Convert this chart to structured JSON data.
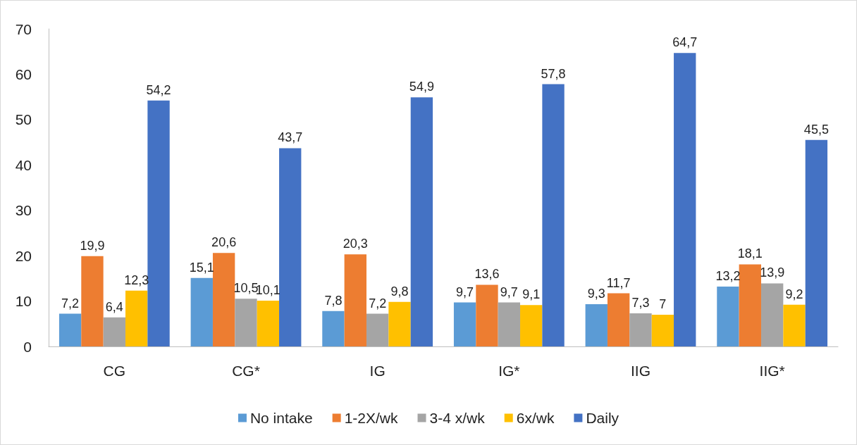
{
  "chart_data": {
    "type": "bar",
    "categories": [
      "CG",
      "CG*",
      "IG",
      "IG*",
      "IIG",
      "IIG*"
    ],
    "series": [
      {
        "name": "No intake",
        "color": "#5b9bd5",
        "values": [
          7.2,
          15.1,
          7.8,
          9.7,
          9.3,
          13.2
        ],
        "value_labels": [
          "7,2",
          "15,1",
          "7,8",
          "9,7",
          "9,3",
          "13,2"
        ]
      },
      {
        "name": "1-2X/wk",
        "color": "#ed7d31",
        "values": [
          19.9,
          20.6,
          20.3,
          13.6,
          11.7,
          18.1
        ],
        "value_labels": [
          "19,9",
          "20,6",
          "20,3",
          "13,6",
          "11,7",
          "18,1"
        ]
      },
      {
        "name": "3-4 x/wk",
        "color": "#a5a5a5",
        "values": [
          6.4,
          10.5,
          7.2,
          9.7,
          7.3,
          13.9
        ],
        "value_labels": [
          "6,4",
          "10,5",
          "7,2",
          "9,7",
          "7,3",
          "13,9"
        ]
      },
      {
        "name": "6x/wk",
        "color": "#ffc000",
        "values": [
          12.3,
          10.1,
          9.8,
          9.1,
          7,
          9.2
        ],
        "value_labels": [
          "12,3",
          "10,1",
          "9,8",
          "9,1",
          "7",
          "9,2"
        ]
      },
      {
        "name": "Daily",
        "color": "#4472c4",
        "values": [
          54.2,
          43.7,
          54.9,
          57.8,
          64.7,
          45.5
        ],
        "value_labels": [
          "54,2",
          "43,7",
          "54,9",
          "57,8",
          "64,7",
          "45,5"
        ]
      }
    ],
    "ylim": [
      0,
      70
    ],
    "yticks": [
      0,
      10,
      20,
      30,
      40,
      50,
      60,
      70
    ],
    "grid": false,
    "legend": "bottom"
  }
}
